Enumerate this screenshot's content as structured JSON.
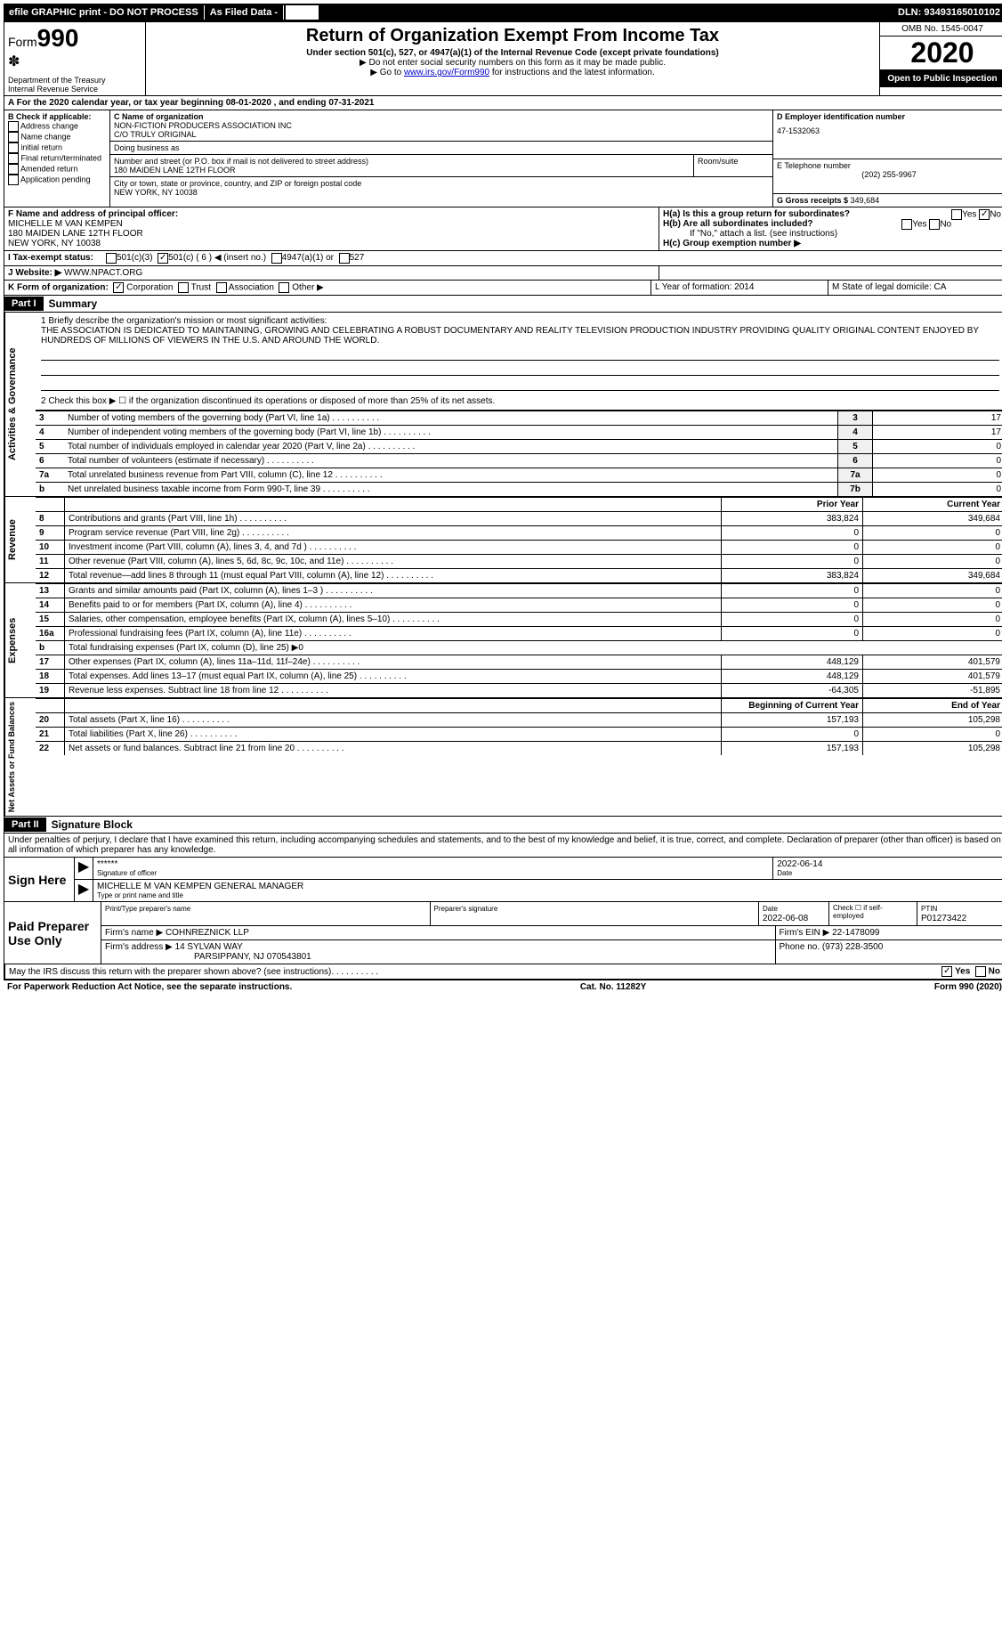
{
  "topbar": {
    "efile": "efile GRAPHIC print - DO NOT PROCESS",
    "asfiled": "As Filed Data -",
    "dln": "DLN: 93493165010102"
  },
  "header": {
    "form_word": "Form",
    "form_num": "990",
    "dept": "Department of the Treasury",
    "irs": "Internal Revenue Service",
    "title": "Return of Organization Exempt From Income Tax",
    "sub1": "Under section 501(c), 527, or 4947(a)(1) of the Internal Revenue Code (except private foundations)",
    "sub2": "▶ Do not enter social security numbers on this form as it may be made public.",
    "sub3_pre": "▶ Go to ",
    "sub3_link": "www.irs.gov/Form990",
    "sub3_post": " for instructions and the latest information.",
    "omb": "OMB No. 1545-0047",
    "year": "2020",
    "inspect": "Open to Public Inspection"
  },
  "row_a": "A  For the 2020 calendar year, or tax year beginning 08-01-2020   , and ending 07-31-2021",
  "section_b": {
    "b_label": "B Check if applicable:",
    "b_items": [
      "Address change",
      "Name change",
      "initial return",
      "Final return/terminated",
      "Amended return",
      "Application pending"
    ],
    "c_label": "C Name of organization",
    "c_name": "NON-FICTION PRODUCERS ASSOCIATION INC",
    "c_co": "C/O TRULY ORIGINAL",
    "dba_label": "Doing business as",
    "dba": "",
    "addr_label": "Number and street (or P.O. box if mail is not delivered to street address)",
    "addr": "180 MAIDEN LANE 12TH FLOOR",
    "room_label": "Room/suite",
    "city_label": "City or town, state or province, country, and ZIP or foreign postal code",
    "city": "NEW YORK, NY  10038",
    "d_label": "D Employer identification number",
    "d_ein": "47-1532063",
    "e_label": "E Telephone number",
    "e_phone": "(202) 255-9967",
    "g_label": "G Gross receipts $ ",
    "g_val": "349,684"
  },
  "row_fh": {
    "f_label": "F  Name and address of principal officer:",
    "f_name": "MICHELLE M VAN KEMPEN",
    "f_addr1": "180 MAIDEN LANE 12TH FLOOR",
    "f_addr2": "NEW YORK, NY  10038",
    "ha": "H(a)  Is this a group return for subordinates?",
    "hb": "H(b)  Are all subordinates included?",
    "hb_note": "If \"No,\" attach a list. (see instructions)",
    "hc": "H(c)  Group exemption number ▶"
  },
  "row_i": {
    "label": "I  Tax-exempt status:",
    "opt1": "501(c)(3)",
    "opt2": "501(c) ( 6 ) ◀ (insert no.)",
    "opt3": "4947(a)(1) or",
    "opt4": "527"
  },
  "row_j": {
    "label": "J  Website: ▶",
    "site": "  WWW.NPACT.ORG"
  },
  "row_k": {
    "label": "K Form of organization:",
    "opts": [
      "Corporation",
      "Trust",
      "Association",
      "Other ▶"
    ],
    "l": "L Year of formation: 2014",
    "m": "M State of legal domicile: CA"
  },
  "part1": {
    "tag": "Part I",
    "title": "Summary",
    "q1": "1  Briefly describe the organization's mission or most significant activities:",
    "mission": "THE ASSOCIATION IS DEDICATED TO MAINTAINING, GROWING AND CELEBRATING A ROBUST DOCUMENTARY AND REALITY TELEVISION PRODUCTION INDUSTRY PROVIDING QUALITY ORIGINAL CONTENT ENJOYED BY HUNDREDS OF MILLIONS OF VIEWERS IN THE U.S. AND AROUND THE WORLD.",
    "q2": "2  Check this box ▶ ☐ if the organization discontinued its operations or disposed of more than 25% of its net assets.",
    "ag_label": "Activities & Governance",
    "lines_ag": [
      {
        "n": "3",
        "t": "Number of voting members of the governing body (Part VI, line 1a)",
        "box": "3",
        "v": "17"
      },
      {
        "n": "4",
        "t": "Number of independent voting members of the governing body (Part VI, line 1b)",
        "box": "4",
        "v": "17"
      },
      {
        "n": "5",
        "t": "Total number of individuals employed in calendar year 2020 (Part V, line 2a)",
        "box": "5",
        "v": "0"
      },
      {
        "n": "6",
        "t": "Total number of volunteers (estimate if necessary)",
        "box": "6",
        "v": "0"
      },
      {
        "n": "7a",
        "t": "Total unrelated business revenue from Part VIII, column (C), line 12",
        "box": "7a",
        "v": "0"
      },
      {
        "n": "b",
        "t": "Net unrelated business taxable income from Form 990-T, line 39",
        "box": "7b",
        "v": "0"
      }
    ],
    "py_header": "Prior Year",
    "cy_header": "Current Year",
    "rev_label": "Revenue",
    "lines_rev": [
      {
        "n": "8",
        "t": "Contributions and grants (Part VIII, line 1h)",
        "py": "383,824",
        "cy": "349,684"
      },
      {
        "n": "9",
        "t": "Program service revenue (Part VIII, line 2g)",
        "py": "0",
        "cy": "0"
      },
      {
        "n": "10",
        "t": "Investment income (Part VIII, column (A), lines 3, 4, and 7d )",
        "py": "0",
        "cy": "0"
      },
      {
        "n": "11",
        "t": "Other revenue (Part VIII, column (A), lines 5, 6d, 8c, 9c, 10c, and 11e)",
        "py": "0",
        "cy": "0"
      },
      {
        "n": "12",
        "t": "Total revenue—add lines 8 through 11 (must equal Part VIII, column (A), line 12)",
        "py": "383,824",
        "cy": "349,684"
      }
    ],
    "exp_label": "Expenses",
    "lines_exp": [
      {
        "n": "13",
        "t": "Grants and similar amounts paid (Part IX, column (A), lines 1–3 )",
        "py": "0",
        "cy": "0"
      },
      {
        "n": "14",
        "t": "Benefits paid to or for members (Part IX, column (A), line 4)",
        "py": "0",
        "cy": "0"
      },
      {
        "n": "15",
        "t": "Salaries, other compensation, employee benefits (Part IX, column (A), lines 5–10)",
        "py": "0",
        "cy": "0"
      },
      {
        "n": "16a",
        "t": "Professional fundraising fees (Part IX, column (A), line 11e)",
        "py": "0",
        "cy": "0"
      },
      {
        "n": "b",
        "t": "Total fundraising expenses (Part IX, column (D), line 25) ▶0",
        "py": "",
        "cy": ""
      },
      {
        "n": "17",
        "t": "Other expenses (Part IX, column (A), lines 11a–11d, 11f–24e)",
        "py": "448,129",
        "cy": "401,579"
      },
      {
        "n": "18",
        "t": "Total expenses. Add lines 13–17 (must equal Part IX, column (A), line 25)",
        "py": "448,129",
        "cy": "401,579"
      },
      {
        "n": "19",
        "t": "Revenue less expenses. Subtract line 18 from line 12",
        "py": "-64,305",
        "cy": "-51,895"
      }
    ],
    "na_label": "Net Assets or Fund Balances",
    "boy_header": "Beginning of Current Year",
    "eoy_header": "End of Year",
    "lines_na": [
      {
        "n": "20",
        "t": "Total assets (Part X, line 16)",
        "py": "157,193",
        "cy": "105,298"
      },
      {
        "n": "21",
        "t": "Total liabilities (Part X, line 26)",
        "py": "0",
        "cy": "0"
      },
      {
        "n": "22",
        "t": "Net assets or fund balances. Subtract line 21 from line 20",
        "py": "157,193",
        "cy": "105,298"
      }
    ]
  },
  "part2": {
    "tag": "Part II",
    "title": "Signature Block",
    "pen": "Under penalties of perjury, I declare that I have examined this return, including accompanying schedules and statements, and to the best of my knowledge and belief, it is true, correct, and complete. Declaration of preparer (other than officer) is based on all information of which preparer has any knowledge.",
    "sign_here": "Sign Here",
    "sig_stars": "******",
    "sig_of_officer": "Signature of officer",
    "sig_date": "2022-06-14",
    "sig_date_label": "Date",
    "officer_name": "MICHELLE M VAN KEMPEN  GENERAL MANAGER",
    "type_label": "Type or print name and title",
    "paid_label": "Paid Preparer Use Only",
    "prep_name_label": "Print/Type preparer's name",
    "prep_sig_label": "Preparer's signature",
    "prep_date_label": "Date",
    "prep_date": "2022-06-08",
    "prep_check": "Check ☐ if self-employed",
    "ptin_label": "PTIN",
    "ptin": "P01273422",
    "firm_name_label": "Firm's name      ▶ ",
    "firm_name": "COHNREZNICK LLP",
    "firm_ein_label": "Firm's EIN ▶ ",
    "firm_ein": "22-1478099",
    "firm_addr_label": "Firm's address ▶ ",
    "firm_addr1": "14 SYLVAN WAY",
    "firm_addr2": "PARSIPPANY, NJ  070543801",
    "firm_phone_label": "Phone no. ",
    "firm_phone": "(973) 228-3500",
    "discuss": "May the IRS discuss this return with the preparer shown above? (see instructions)"
  },
  "footer": {
    "left": "For Paperwork Reduction Act Notice, see the separate instructions.",
    "mid": "Cat. No. 11282Y",
    "right_pre": "Form ",
    "right_form": "990",
    "right_post": " (2020)"
  }
}
